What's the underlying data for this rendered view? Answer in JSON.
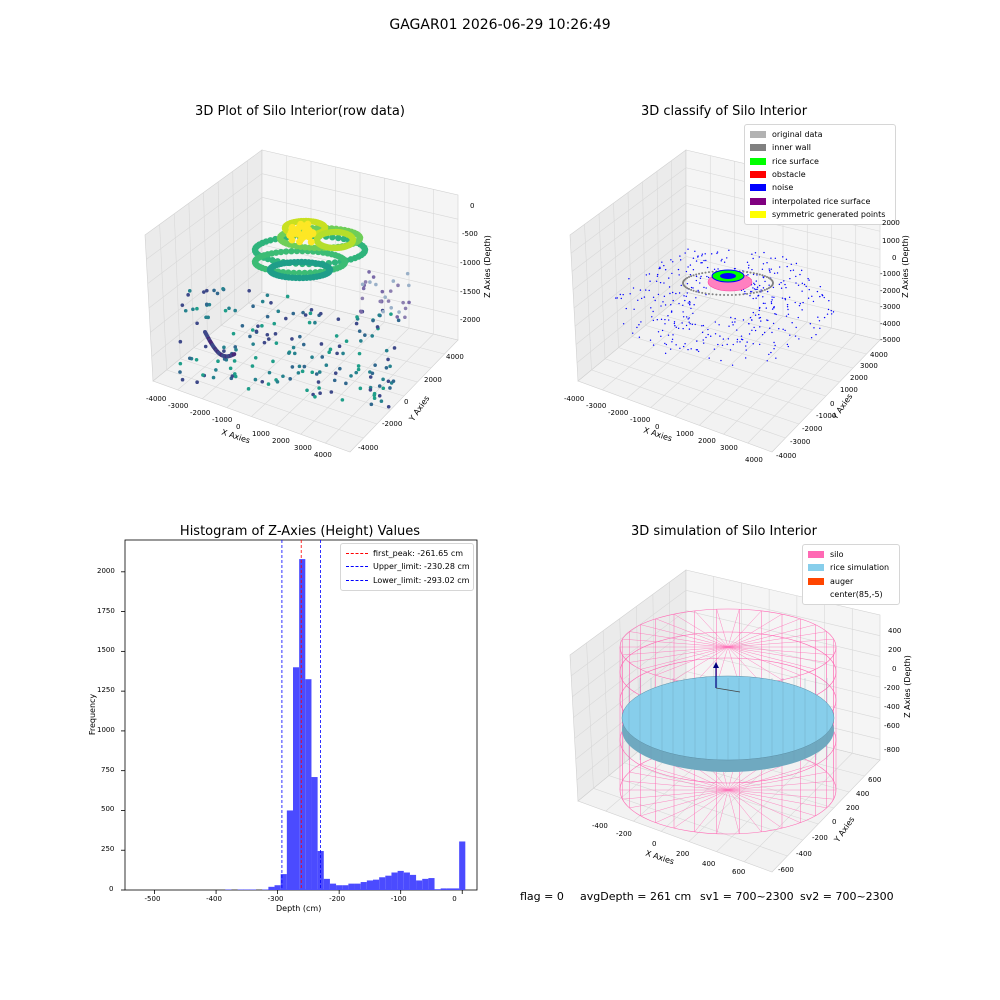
{
  "suptitle": "GAGAR01 2026-06-29 10:26:49",
  "footer": {
    "flag": "flag = 0",
    "avg": "avgDepth = 261 cm",
    "sv1": "sv1 = 700~2300",
    "sv2": "sv2 = 700~2300"
  },
  "colors": {
    "hist_bar": "#4b4bff",
    "first_peak": "#ff0000",
    "limits": "#0000ff",
    "silo": "#ff69b4",
    "rice": "#87ceeb",
    "auger": "#ff4500"
  },
  "chart_data": [
    {
      "type": "scatter",
      "title": "3D Plot of Silo Interior(row data)",
      "xlabel": "X Axies",
      "ylabel": "Y Axies",
      "zlabel": "Z Axies (Depth)",
      "xticks": [
        "-4000",
        "-3000",
        "-2000",
        "-1000",
        "0",
        "1000",
        "2000",
        "3000",
        "4000"
      ],
      "yticks": [
        "-4000",
        "-2000",
        "0",
        "2000",
        "4000"
      ],
      "zticks": [
        "0",
        "-500",
        "-1000",
        "-1500",
        "-2000"
      ],
      "xlim": [
        -4000,
        4000
      ],
      "ylim": [
        -4000,
        4000
      ],
      "zlim": [
        -2300,
        0
      ],
      "colormap": "viridis (by depth)"
    },
    {
      "type": "scatter",
      "title": "3D classify of Silo Interior",
      "xlabel": "X Axies",
      "ylabel": "Y Axies",
      "zlabel": "Z Axies (Depth)",
      "xticks": [
        "-4000",
        "-3000",
        "-2000",
        "-1000",
        "0",
        "1000",
        "2000",
        "3000",
        "4000"
      ],
      "yticks": [
        "-4000",
        "-3000",
        "-2000",
        "-1000",
        "0",
        "1000",
        "2000",
        "3000",
        "4000"
      ],
      "zticks": [
        "2000",
        "1000",
        "0",
        "-1000",
        "-2000",
        "-3000",
        "-4000",
        "-5000"
      ],
      "legend": [
        {
          "label": "original data",
          "color": "#b2b2b2"
        },
        {
          "label": "inner wall",
          "color": "#808080"
        },
        {
          "label": "rice surface",
          "color": "#00ff00"
        },
        {
          "label": "obstacle",
          "color": "#ff0000"
        },
        {
          "label": "noise",
          "color": "#0000ff"
        },
        {
          "label": "interpolated rice surface",
          "color": "#800080"
        },
        {
          "label": "symmetric generated points",
          "color": "#ffff00"
        }
      ],
      "legend_position": "upper right"
    },
    {
      "type": "bar",
      "title": "Histogram of Z-Axies (Height) Values",
      "xlabel": "Depth (cm)",
      "ylabel": "Frequency",
      "xlim": [
        -548,
        24
      ],
      "ylim": [
        0,
        2200
      ],
      "xticks": [
        "-500",
        "-400",
        "-300",
        "-200",
        "-100",
        "0"
      ],
      "yticks": [
        "0",
        "250",
        "500",
        "750",
        "1000",
        "1250",
        "1500",
        "1750",
        "2000"
      ],
      "bin_width": 10,
      "bins": [
        {
          "x": -380,
          "count": 3
        },
        {
          "x": -360,
          "count": 3
        },
        {
          "x": -350,
          "count": 3
        },
        {
          "x": -340,
          "count": 3
        },
        {
          "x": -320,
          "count": 3
        },
        {
          "x": -310,
          "count": 20
        },
        {
          "x": -300,
          "count": 30
        },
        {
          "x": -290,
          "count": 100
        },
        {
          "x": -280,
          "count": 500
        },
        {
          "x": -270,
          "count": 1400
        },
        {
          "x": -260,
          "count": 2080
        },
        {
          "x": -250,
          "count": 1325
        },
        {
          "x": -240,
          "count": 710
        },
        {
          "x": -230,
          "count": 245
        },
        {
          "x": -220,
          "count": 70
        },
        {
          "x": -210,
          "count": 40
        },
        {
          "x": -200,
          "count": 30
        },
        {
          "x": -190,
          "count": 30
        },
        {
          "x": -180,
          "count": 40
        },
        {
          "x": -170,
          "count": 40
        },
        {
          "x": -160,
          "count": 50
        },
        {
          "x": -150,
          "count": 60
        },
        {
          "x": -140,
          "count": 65
        },
        {
          "x": -130,
          "count": 80
        },
        {
          "x": -120,
          "count": 90
        },
        {
          "x": -110,
          "count": 110
        },
        {
          "x": -100,
          "count": 120
        },
        {
          "x": -90,
          "count": 110
        },
        {
          "x": -80,
          "count": 95
        },
        {
          "x": -70,
          "count": 60
        },
        {
          "x": -60,
          "count": 70
        },
        {
          "x": -50,
          "count": 75
        },
        {
          "x": -40,
          "count": 5
        },
        {
          "x": -30,
          "count": 10
        },
        {
          "x": -20,
          "count": 10
        },
        {
          "x": -10,
          "count": 10
        },
        {
          "x": 0,
          "count": 305
        }
      ],
      "vlines": [
        {
          "x": -261.65,
          "label": "first_peak: -261.65 cm",
          "color": "#ff0000"
        },
        {
          "x": -230.28,
          "label": "Upper_limit: -230.28 cm",
          "color": "#0000ff"
        },
        {
          "x": -293.02,
          "label": "Lower_limit: -293.02 cm",
          "color": "#0000ff"
        }
      ],
      "legend_position": "upper right"
    },
    {
      "type": "scatter",
      "title": "3D simulation of Silo Interior",
      "xlabel": "X Axies",
      "ylabel": "Y Axies",
      "zlabel": "Z Axies (Depth)",
      "xticks": [
        "-400",
        "-200",
        "0",
        "200",
        "400",
        "600"
      ],
      "yticks": [
        "-600",
        "-400",
        "-200",
        "0",
        "200",
        "400",
        "600"
      ],
      "zticks": [
        "400",
        "200",
        "0",
        "-200",
        "-400",
        "-600",
        "-800"
      ],
      "legend": [
        {
          "label": "silo",
          "color": "#ff69b4"
        },
        {
          "label": "rice simulation",
          "color": "#87ceeb"
        },
        {
          "label": "auger",
          "color": "#ff4500"
        },
        {
          "label": "center(85,-5)",
          "color": ""
        }
      ],
      "legend_position": "upper right"
    }
  ]
}
